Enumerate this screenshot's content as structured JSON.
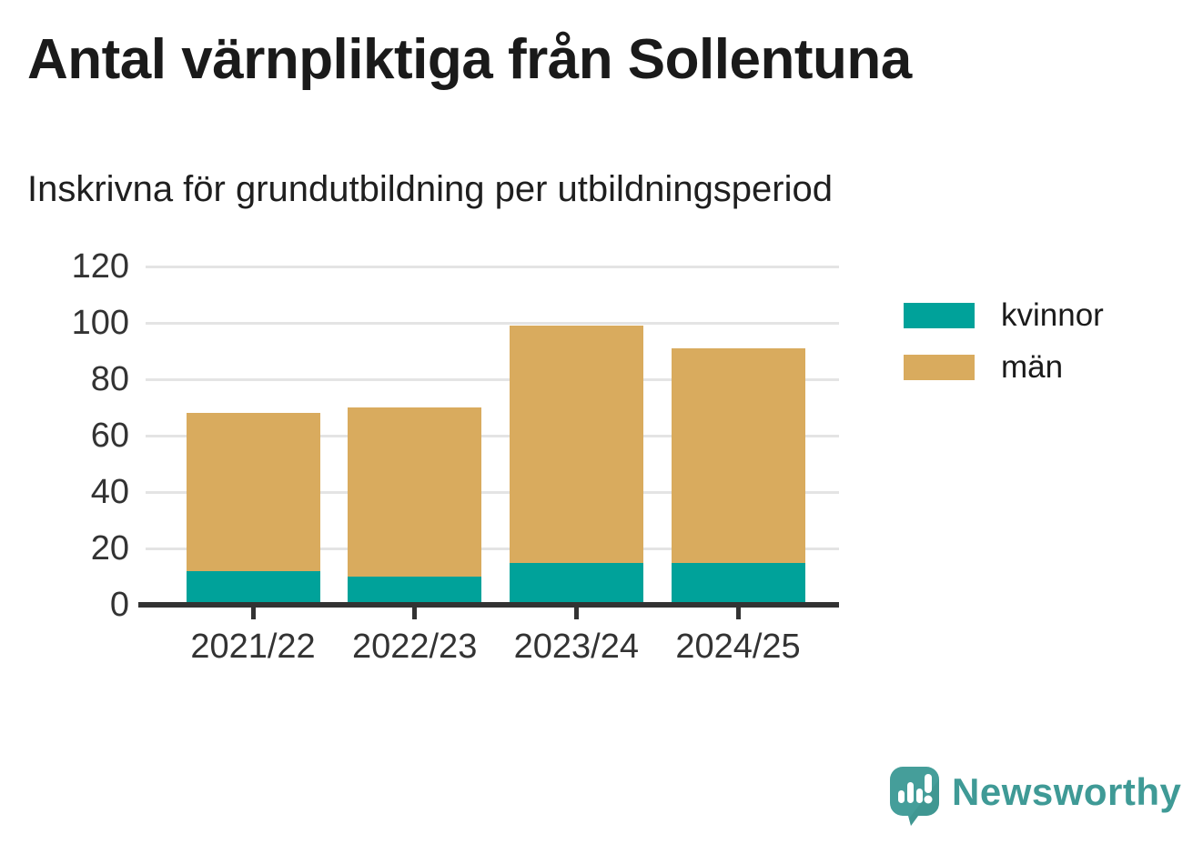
{
  "header": {
    "title": "Antal värnpliktiga från Sollentuna",
    "subtitle": "Inskrivna för grundutbildning per utbildningsperiod"
  },
  "chart_data": {
    "type": "bar",
    "stacked": true,
    "categories": [
      "2021/22",
      "2022/23",
      "2023/24",
      "2024/25"
    ],
    "series": [
      {
        "name": "kvinnor",
        "color": "#00a29a",
        "values": [
          12,
          10,
          15,
          15
        ]
      },
      {
        "name": "män",
        "color": "#d9ab5e",
        "values": [
          56,
          60,
          84,
          76
        ]
      }
    ],
    "stack_totals": [
      68,
      70,
      99,
      91
    ],
    "title": "Antal värnpliktiga från Sollentuna",
    "subtitle": "Inskrivna för grundutbildning per utbildningsperiod",
    "xlabel": "",
    "ylabel": "",
    "ylim": [
      0,
      120
    ],
    "yticks": [
      0,
      20,
      40,
      60,
      80,
      100,
      120
    ],
    "grid": true,
    "legend_position": "right"
  },
  "branding": {
    "logo_text": "Newsworthy",
    "logo_icon": "newsworthy-speech-bubble-bar-chart-icon",
    "brand_color": "#3f9a96"
  },
  "colors": {
    "kvinnor": "#00a29a",
    "man": "#d9ab5e",
    "title_text": "#1a1a1a",
    "axis_text": "#333333",
    "axis_line": "#333333",
    "gridline": "#e4e4e4",
    "background": "#ffffff",
    "brand": "#3f9a96"
  }
}
